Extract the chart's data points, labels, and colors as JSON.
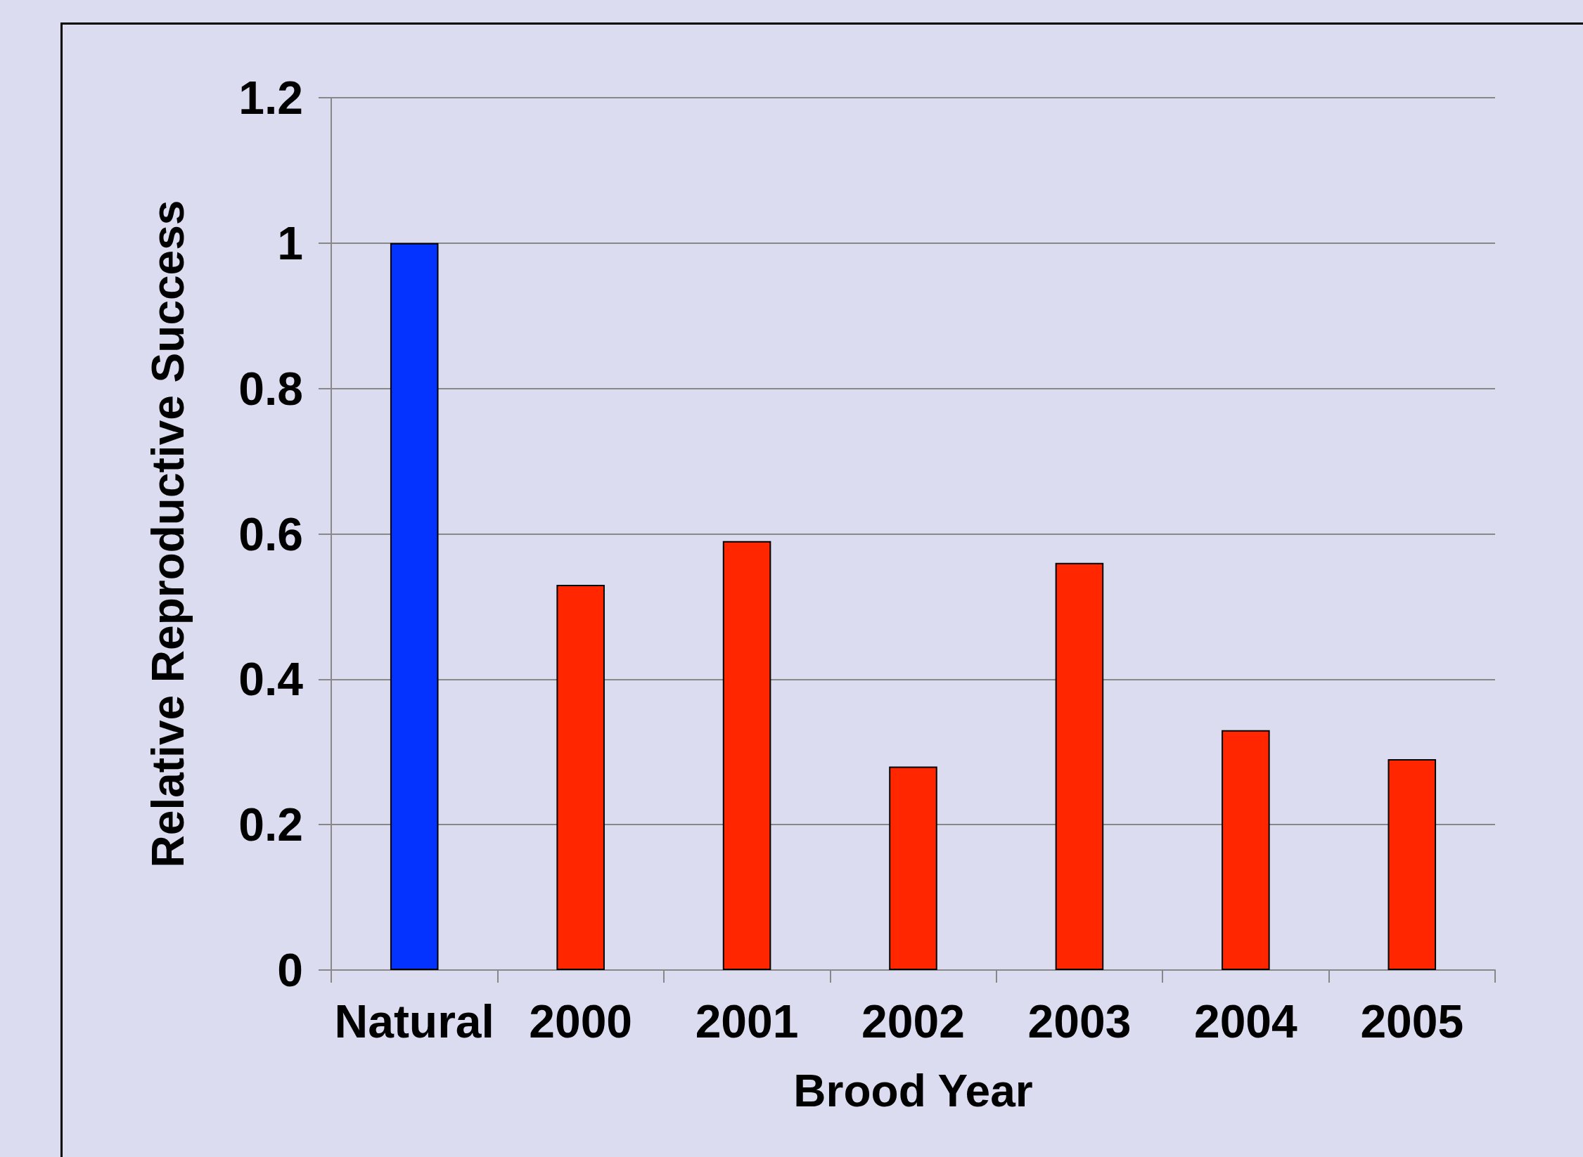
{
  "chart_data": {
    "type": "bar",
    "xlabel": "Brood Year",
    "ylabel": "Relative Reproductive Success",
    "categories": [
      "Natural",
      "2000",
      "2001",
      "2002",
      "2003",
      "2004",
      "2005"
    ],
    "values": [
      1.0,
      0.53,
      0.59,
      0.28,
      0.56,
      0.33,
      0.29
    ],
    "colors": [
      "#0433ff",
      "#ff2600",
      "#ff2600",
      "#ff2600",
      "#ff2600",
      "#ff2600",
      "#ff2600"
    ],
    "ylim": [
      0,
      1.2
    ],
    "yticks": [
      0,
      0.2,
      0.4,
      0.6,
      0.8,
      1,
      1.2
    ],
    "grid": "y"
  }
}
